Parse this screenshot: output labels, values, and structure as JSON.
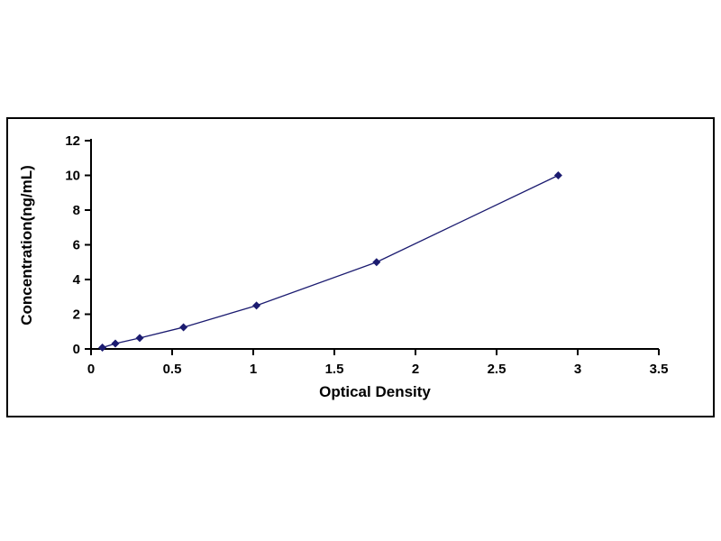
{
  "chart_data": {
    "type": "line",
    "title": "",
    "xlabel": "Optical Density",
    "ylabel": "Concentration(ng/mL)",
    "xlim": [
      0,
      3.5
    ],
    "ylim": [
      0,
      12
    ],
    "xtick_values": [
      0,
      0.5,
      1,
      1.5,
      2,
      2.5,
      3,
      3.5
    ],
    "xtick_labels": [
      "0",
      "0.5",
      "1",
      "1.5",
      "2",
      "2.5",
      "3",
      "3.5"
    ],
    "ytick_values": [
      0,
      2,
      4,
      6,
      8,
      10,
      12
    ],
    "ytick_labels": [
      "0",
      "2",
      "4",
      "6",
      "8",
      "10",
      "12"
    ],
    "grid": false,
    "legend": "none",
    "marker": "diamond",
    "line_color": "#1b1b70",
    "marker_color": "#1b1b70",
    "axis_color": "#000000",
    "background_color": "#ffffff",
    "points": [
      {
        "x": 0.07,
        "y": 0.08
      },
      {
        "x": 0.15,
        "y": 0.31
      },
      {
        "x": 0.3,
        "y": 0.63
      },
      {
        "x": 0.57,
        "y": 1.25
      },
      {
        "x": 1.02,
        "y": 2.5
      },
      {
        "x": 1.76,
        "y": 5.0
      },
      {
        "x": 2.88,
        "y": 10.0
      }
    ]
  }
}
